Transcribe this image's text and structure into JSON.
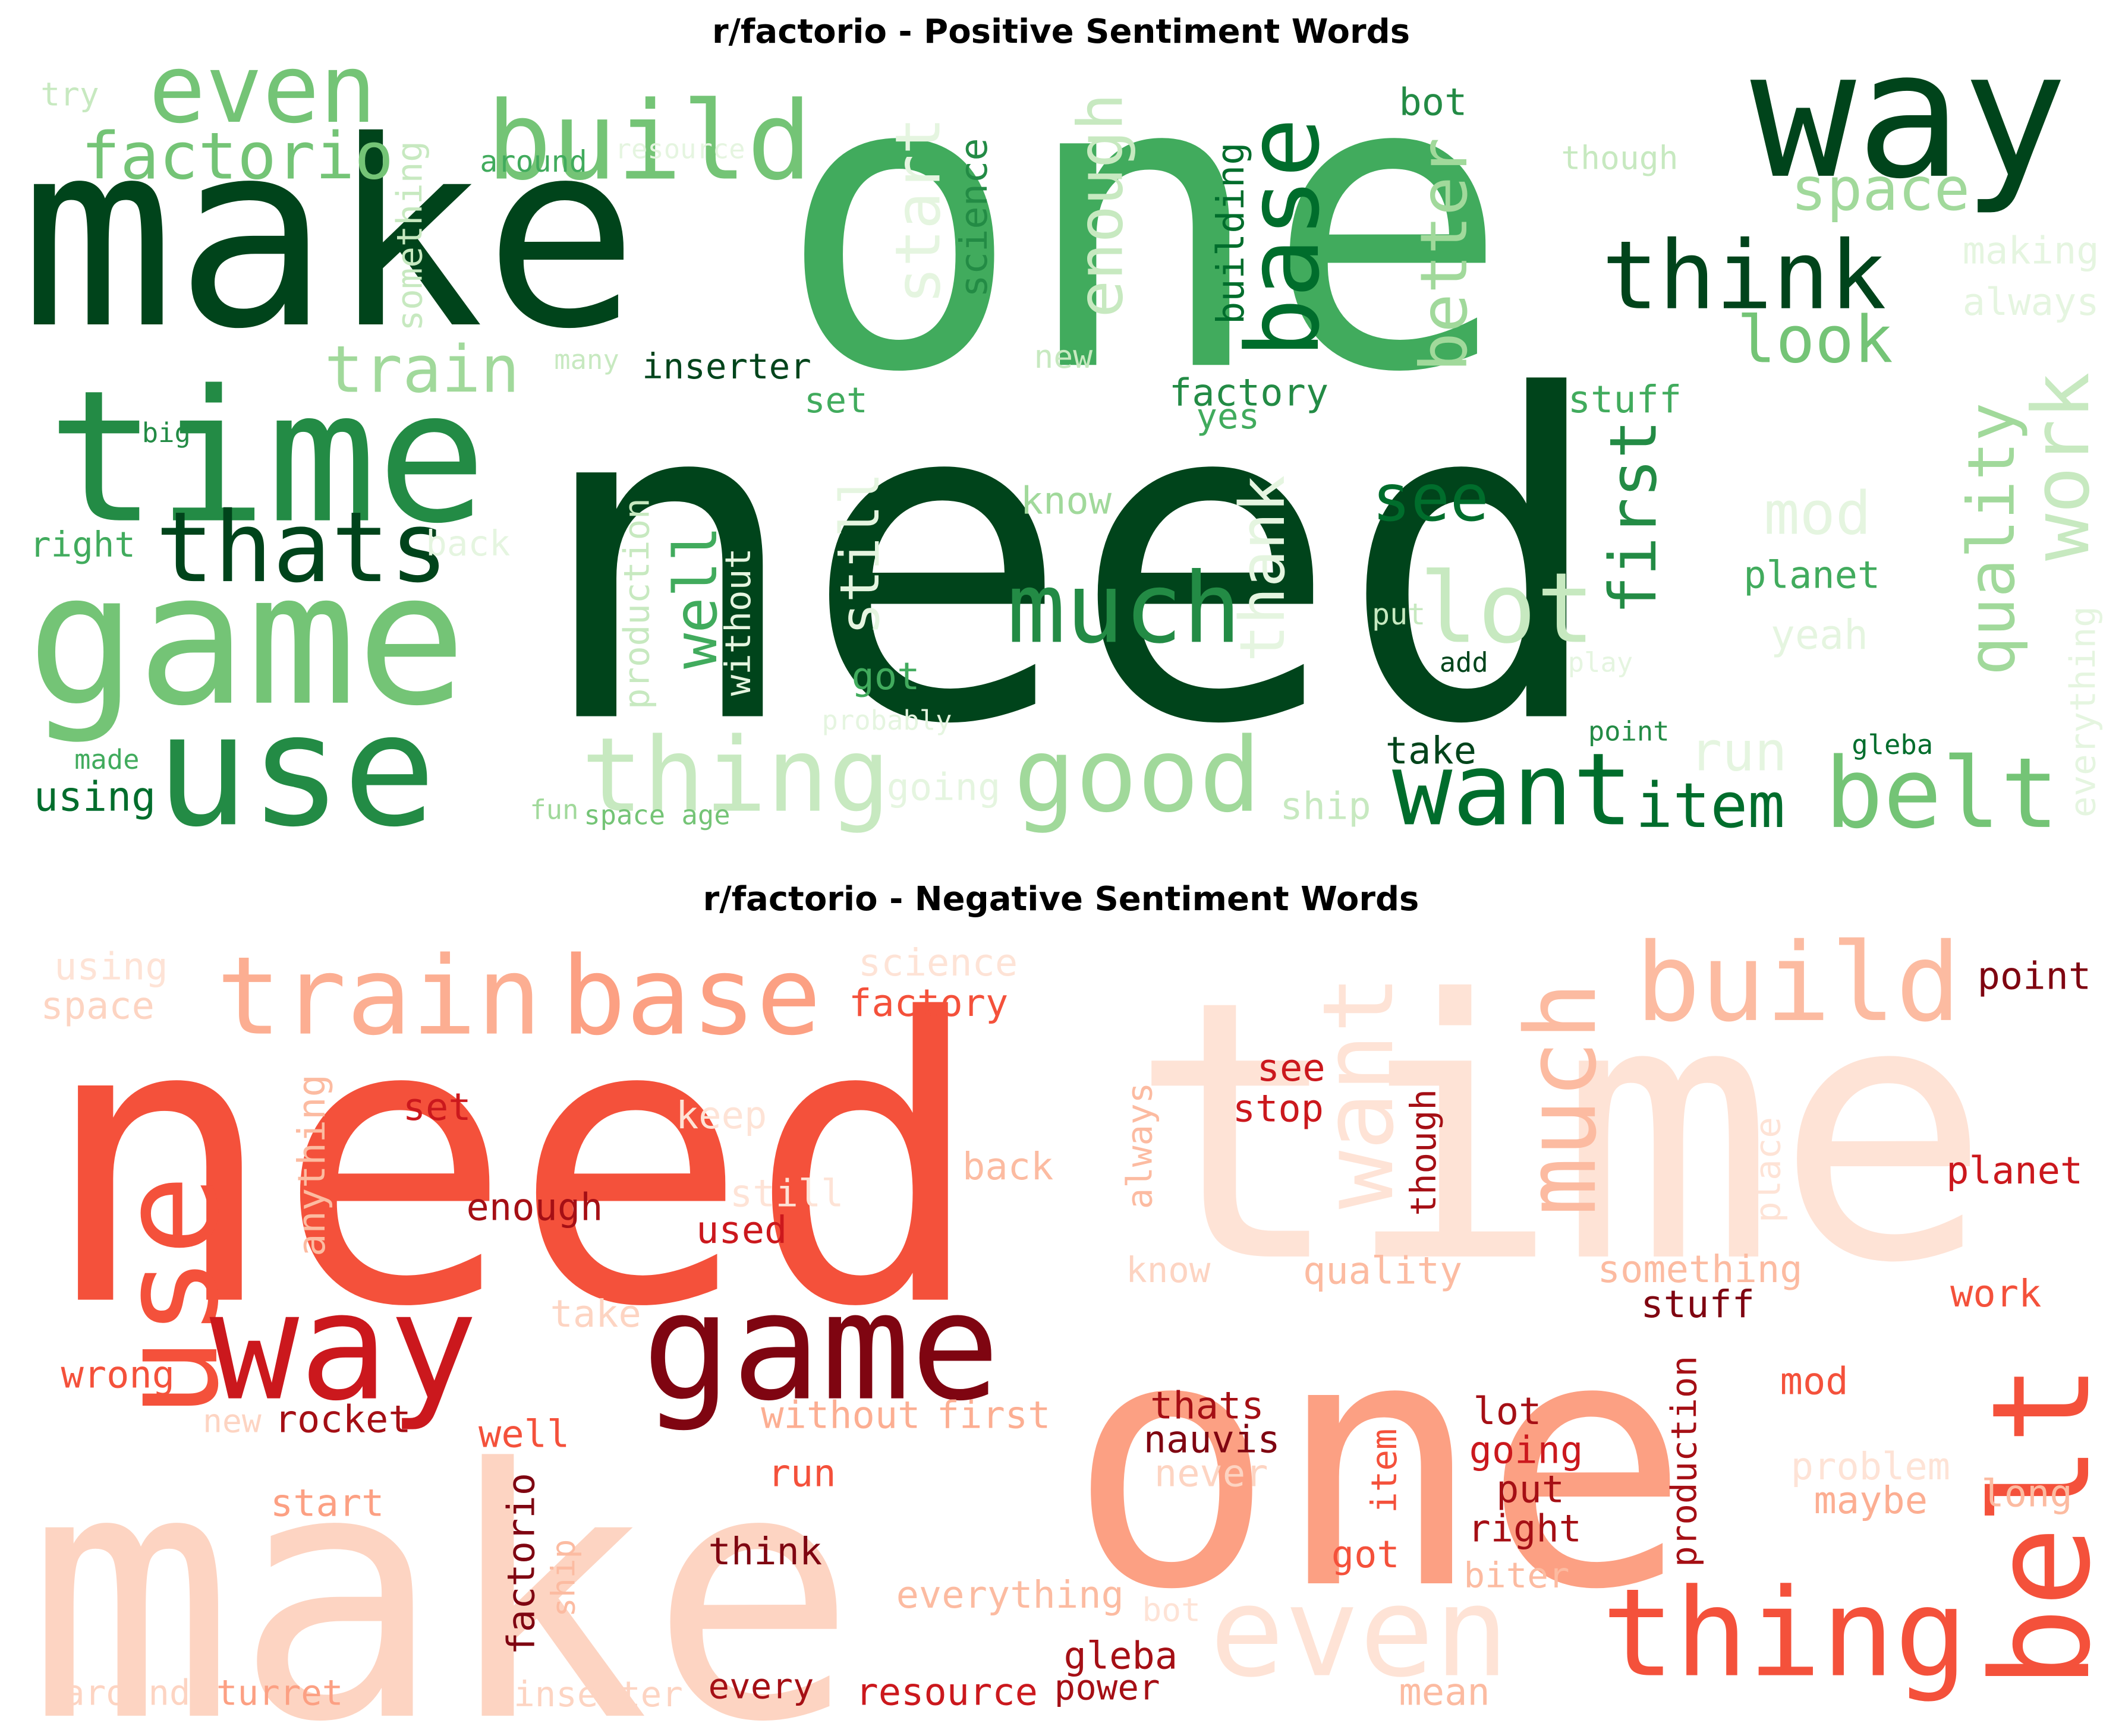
{
  "positive": {
    "title": "r/factorio - Positive Sentiment Words",
    "words": [
      {
        "text": "need",
        "c": "#00441b"
      },
      {
        "text": "one",
        "c": "#41ab5d"
      },
      {
        "text": "make",
        "c": "#00441b"
      },
      {
        "text": "way",
        "c": "#00441b"
      },
      {
        "text": "time",
        "c": "#238b45"
      },
      {
        "text": "game",
        "c": "#74c476"
      },
      {
        "text": "use",
        "c": "#238b45"
      },
      {
        "text": "build",
        "c": "#74c476"
      },
      {
        "text": "even",
        "c": "#74c476"
      },
      {
        "text": "factorio",
        "c": "#74c476"
      },
      {
        "text": "thats",
        "c": "#00441b"
      },
      {
        "text": "train",
        "c": "#a1d99b"
      },
      {
        "text": "think",
        "c": "#00441b"
      },
      {
        "text": "base",
        "c": "#006d2c"
      },
      {
        "text": "space",
        "c": "#a1d99b"
      },
      {
        "text": "look",
        "c": "#74c476"
      },
      {
        "text": "much",
        "c": "#238b45"
      },
      {
        "text": "lot",
        "c": "#c7e9c0"
      },
      {
        "text": "see",
        "c": "#006d2c"
      },
      {
        "text": "thing",
        "c": "#c7e9c0"
      },
      {
        "text": "good",
        "c": "#a1d99b"
      },
      {
        "text": "want",
        "c": "#006d2c"
      },
      {
        "text": "item",
        "c": "#006d2c"
      },
      {
        "text": "belt",
        "c": "#74c476"
      },
      {
        "text": "work",
        "c": "#c7e9c0"
      },
      {
        "text": "quality",
        "c": "#a1d99b"
      },
      {
        "text": "first",
        "c": "#238b45"
      },
      {
        "text": "better",
        "c": "#a1d99b"
      },
      {
        "text": "enough",
        "c": "#c7e9c0"
      },
      {
        "text": "start",
        "c": "#e5f5e0"
      },
      {
        "text": "science",
        "c": "#238b45"
      },
      {
        "text": "building",
        "c": "#006d2c"
      },
      {
        "text": "bot",
        "c": "#238b45"
      },
      {
        "text": "though",
        "c": "#c7e9c0"
      },
      {
        "text": "making",
        "c": "#e5f5e0"
      },
      {
        "text": "always",
        "c": "#e5f5e0"
      },
      {
        "text": "try",
        "c": "#c7e9c0"
      },
      {
        "text": "around",
        "c": "#41ab5d"
      },
      {
        "text": "resource",
        "c": "#e5f5e0"
      },
      {
        "text": "something",
        "c": "#c7e9c0"
      },
      {
        "text": "many",
        "c": "#c7e9c0"
      },
      {
        "text": "inserter",
        "c": "#00441b"
      },
      {
        "text": "new",
        "c": "#c7e9c0"
      },
      {
        "text": "factory",
        "c": "#238b45"
      },
      {
        "text": "yes",
        "c": "#41ab5d"
      },
      {
        "text": "set",
        "c": "#41ab5d"
      },
      {
        "text": "stuff",
        "c": "#41ab5d"
      },
      {
        "text": "mod",
        "c": "#e5f5e0"
      },
      {
        "text": "big",
        "c": "#238b45"
      },
      {
        "text": "right",
        "c": "#41ab5d"
      },
      {
        "text": "back",
        "c": "#e5f5e0"
      },
      {
        "text": "know",
        "c": "#a1d99b"
      },
      {
        "text": "still",
        "c": "#e5f5e0"
      },
      {
        "text": "well",
        "c": "#41ab5d"
      },
      {
        "text": "without",
        "c": "#e5f5e0"
      },
      {
        "text": "production",
        "c": "#c7e9c0"
      },
      {
        "text": "thank",
        "c": "#e5f5e0"
      },
      {
        "text": "planet",
        "c": "#41ab5d"
      },
      {
        "text": "put",
        "c": "#c7e9c0"
      },
      {
        "text": "add",
        "c": "#00441b"
      },
      {
        "text": "play",
        "c": "#e5f5e0"
      },
      {
        "text": "yeah",
        "c": "#e5f5e0"
      },
      {
        "text": "everything",
        "c": "#e5f5e0"
      },
      {
        "text": "got",
        "c": "#41ab5d"
      },
      {
        "text": "probably",
        "c": "#e5f5e0"
      },
      {
        "text": "made",
        "c": "#41ab5d"
      },
      {
        "text": "using",
        "c": "#006d2c"
      },
      {
        "text": "fun",
        "c": "#a1d99b"
      },
      {
        "text": "space age",
        "c": "#74c476"
      },
      {
        "text": "going",
        "c": "#e5f5e0"
      },
      {
        "text": "ship",
        "c": "#c7e9c0"
      },
      {
        "text": "take",
        "c": "#00441b"
      },
      {
        "text": "run",
        "c": "#e5f5e0"
      },
      {
        "text": "point",
        "c": "#238b45"
      },
      {
        "text": "gleba",
        "c": "#006d2c"
      }
    ]
  },
  "negative": {
    "title": "r/factorio - Negative Sentiment Words",
    "words": [
      {
        "text": "need",
        "c": "#f4513b"
      },
      {
        "text": "time",
        "c": "#fee3d6"
      },
      {
        "text": "one",
        "c": "#fca083"
      },
      {
        "text": "make",
        "c": "#fdd4c2"
      },
      {
        "text": "train",
        "c": "#fcae92"
      },
      {
        "text": "base",
        "c": "#fca083"
      },
      {
        "text": "build",
        "c": "#fcbba1"
      },
      {
        "text": "want",
        "c": "#fee3d6"
      },
      {
        "text": "much",
        "c": "#fcbba1"
      },
      {
        "text": "use",
        "c": "#f4513b"
      },
      {
        "text": "way",
        "c": "#cb181d"
      },
      {
        "text": "game",
        "c": "#7f0511"
      },
      {
        "text": "belt",
        "c": "#f4513b"
      },
      {
        "text": "even",
        "c": "#fee3d6"
      },
      {
        "text": "thing",
        "c": "#f4513b"
      },
      {
        "text": "point",
        "c": "#7f0511"
      },
      {
        "text": "planet",
        "c": "#cb181d"
      },
      {
        "text": "using",
        "c": "#fee3d6"
      },
      {
        "text": "space",
        "c": "#fdd4c2"
      },
      {
        "text": "science",
        "c": "#fee3d6"
      },
      {
        "text": "factory",
        "c": "#f4513b"
      },
      {
        "text": "see",
        "c": "#cb181d"
      },
      {
        "text": "stop",
        "c": "#cb181d"
      },
      {
        "text": "set",
        "c": "#cb181d"
      },
      {
        "text": "keep",
        "c": "#fee3d6"
      },
      {
        "text": "back",
        "c": "#fcbba1"
      },
      {
        "text": "enough",
        "c": "#a50f15"
      },
      {
        "text": "used",
        "c": "#cb181d"
      },
      {
        "text": "still",
        "c": "#fee3d6"
      },
      {
        "text": "anything",
        "c": "#fcbba1"
      },
      {
        "text": "always",
        "c": "#fcbba1"
      },
      {
        "text": "though",
        "c": "#a50f15"
      },
      {
        "text": "place",
        "c": "#fee3d6"
      },
      {
        "text": "know",
        "c": "#fdd4c2"
      },
      {
        "text": "quality",
        "c": "#fcbba1"
      },
      {
        "text": "something",
        "c": "#fcbba1"
      },
      {
        "text": "stuff",
        "c": "#7f0511"
      },
      {
        "text": "work",
        "c": "#f4513b"
      },
      {
        "text": "take",
        "c": "#fdd4c2"
      },
      {
        "text": "wrong",
        "c": "#f4513b"
      },
      {
        "text": "mod",
        "c": "#f4513b"
      },
      {
        "text": "new",
        "c": "#fdd4c2"
      },
      {
        "text": "rocket",
        "c": "#a50f15"
      },
      {
        "text": "well",
        "c": "#f4513b"
      },
      {
        "text": "without",
        "c": "#fcae92"
      },
      {
        "text": "first",
        "c": "#fcae92"
      },
      {
        "text": "thats",
        "c": "#a50f15"
      },
      {
        "text": "nauvis",
        "c": "#7f0511"
      },
      {
        "text": "lot",
        "c": "#a50f15"
      },
      {
        "text": "going",
        "c": "#cb181d"
      },
      {
        "text": "put",
        "c": "#a50f15"
      },
      {
        "text": "right",
        "c": "#a50f15"
      },
      {
        "text": "production",
        "c": "#a50f15"
      },
      {
        "text": "item",
        "c": "#f4513b"
      },
      {
        "text": "problem",
        "c": "#fee3d6"
      },
      {
        "text": "maybe",
        "c": "#fcae92"
      },
      {
        "text": "long",
        "c": "#fcbba1"
      },
      {
        "text": "never",
        "c": "#fdd4c2"
      },
      {
        "text": "start",
        "c": "#fca083"
      },
      {
        "text": "run",
        "c": "#f4513b"
      },
      {
        "text": "think",
        "c": "#7f0511"
      },
      {
        "text": "got",
        "c": "#f4513b"
      },
      {
        "text": "biter",
        "c": "#fcbba1"
      },
      {
        "text": "everything",
        "c": "#fcbba1"
      },
      {
        "text": "bot",
        "c": "#fee3d6"
      },
      {
        "text": "factorio",
        "c": "#7f0511"
      },
      {
        "text": "ship",
        "c": "#fcbba1"
      },
      {
        "text": "gleba",
        "c": "#a50f15"
      },
      {
        "text": "around",
        "c": "#fdd4c2"
      },
      {
        "text": "turret",
        "c": "#fca083"
      },
      {
        "text": "inserter",
        "c": "#fdd4c2"
      },
      {
        "text": "every",
        "c": "#a50f15"
      },
      {
        "text": "resource",
        "c": "#cb181d"
      },
      {
        "text": "power",
        "c": "#a50f15"
      },
      {
        "text": "mean",
        "c": "#fcbba1"
      }
    ]
  }
}
